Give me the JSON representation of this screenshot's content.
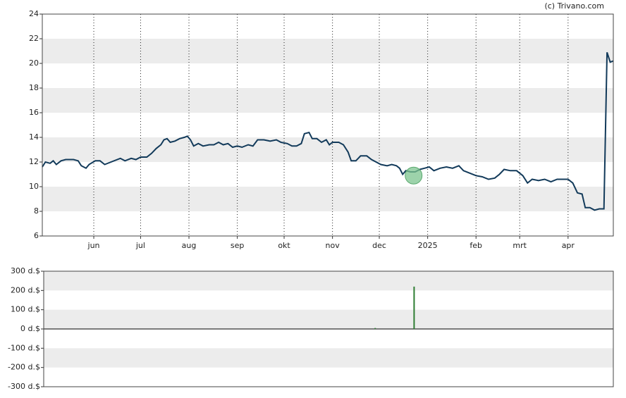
{
  "source": "(c) Trivano.com",
  "chart_data": [
    {
      "type": "line",
      "color": "#123a5a",
      "x": [
        0,
        2,
        5,
        7,
        9,
        12,
        15,
        20,
        23,
        25,
        28,
        30,
        34,
        37,
        40,
        44,
        50,
        53,
        57,
        60,
        63,
        67,
        70,
        73,
        76,
        78,
        80,
        82,
        85,
        88,
        91,
        93,
        95,
        97,
        100,
        103,
        107,
        110,
        113,
        116,
        119,
        122,
        125,
        128,
        132,
        135,
        138,
        142,
        146,
        150,
        153,
        157,
        160,
        163,
        166,
        168,
        171,
        173,
        176,
        179,
        182,
        184,
        186,
        190,
        193,
        196,
        198,
        201,
        204,
        208,
        211,
        214,
        217,
        221,
        224,
        227,
        229,
        231,
        233,
        236,
        239,
        242,
        245,
        248,
        251,
        255,
        259,
        263,
        267,
        270,
        274,
        278,
        282,
        286,
        290,
        293,
        296,
        300,
        304,
        308,
        311,
        314,
        318,
        322,
        326,
        330,
        337,
        340,
        343,
        346,
        348,
        351,
        354,
        357,
        360,
        362,
        364,
        366
      ],
      "values": [
        11.6,
        12.0,
        11.9,
        12.1,
        11.8,
        12.1,
        12.2,
        12.2,
        12.1,
        11.7,
        11.5,
        11.8,
        12.1,
        12.1,
        11.8,
        12.0,
        12.3,
        12.1,
        12.3,
        12.2,
        12.4,
        12.4,
        12.7,
        13.1,
        13.4,
        13.8,
        13.9,
        13.6,
        13.7,
        13.9,
        14.0,
        14.1,
        13.8,
        13.3,
        13.5,
        13.3,
        13.4,
        13.4,
        13.6,
        13.4,
        13.5,
        13.2,
        13.3,
        13.2,
        13.4,
        13.3,
        13.8,
        13.8,
        13.7,
        13.8,
        13.6,
        13.5,
        13.3,
        13.3,
        13.5,
        14.3,
        14.4,
        13.9,
        13.9,
        13.6,
        13.8,
        13.4,
        13.6,
        13.6,
        13.4,
        12.8,
        12.1,
        12.1,
        12.5,
        12.5,
        12.2,
        12.0,
        11.8,
        11.7,
        11.8,
        11.7,
        11.5,
        11.0,
        11.3,
        11.2,
        11.2,
        11.4,
        11.5,
        11.6,
        11.3,
        11.5,
        11.6,
        11.5,
        11.7,
        11.3,
        11.1,
        10.9,
        10.8,
        10.6,
        10.7,
        11.0,
        11.4,
        11.3,
        11.3,
        10.9,
        10.3,
        10.6,
        10.5,
        10.6,
        10.4,
        10.6,
        10.6,
        10.3,
        9.5,
        9.4,
        8.3,
        8.3,
        8.1,
        8.2,
        8.2,
        20.9,
        20.1,
        20.2
      ],
      "marker": {
        "x": 238,
        "value": 10.9,
        "color": "#7cc48f"
      },
      "xlim": [
        0,
        366
      ],
      "xticks": [
        {
          "value": 33,
          "label": "jun"
        },
        {
          "value": 63,
          "label": "jul"
        },
        {
          "value": 94,
          "label": "aug"
        },
        {
          "value": 125,
          "label": "sep"
        },
        {
          "value": 155,
          "label": "okt"
        },
        {
          "value": 186,
          "label": "nov"
        },
        {
          "value": 216,
          "label": "dec"
        },
        {
          "value": 247,
          "label": "2025"
        },
        {
          "value": 278,
          "label": "feb"
        },
        {
          "value": 306,
          "label": "mrt"
        },
        {
          "value": 337,
          "label": "apr"
        }
      ],
      "ylim": [
        6,
        24
      ],
      "yticks": [
        6,
        8,
        10,
        12,
        14,
        16,
        18,
        20,
        22,
        24
      ],
      "bands": true,
      "grid": true
    },
    {
      "type": "bar",
      "color": "#2e7d32",
      "x": [
        213,
        238
      ],
      "values": [
        5,
        220
      ],
      "xlim": [
        0,
        366
      ],
      "ylim": [
        -300,
        300
      ],
      "yticks": [
        {
          "value": -300,
          "label": "-300 d.$"
        },
        {
          "value": -200,
          "label": "-200 d.$"
        },
        {
          "value": -100,
          "label": "-100 d.$"
        },
        {
          "value": 0,
          "label": "0 d.$"
        },
        {
          "value": 100,
          "label": "100 d.$"
        },
        {
          "value": 200,
          "label": "200 d.$"
        },
        {
          "value": 300,
          "label": "300 d.$"
        }
      ],
      "bands": true,
      "grid": false
    }
  ]
}
